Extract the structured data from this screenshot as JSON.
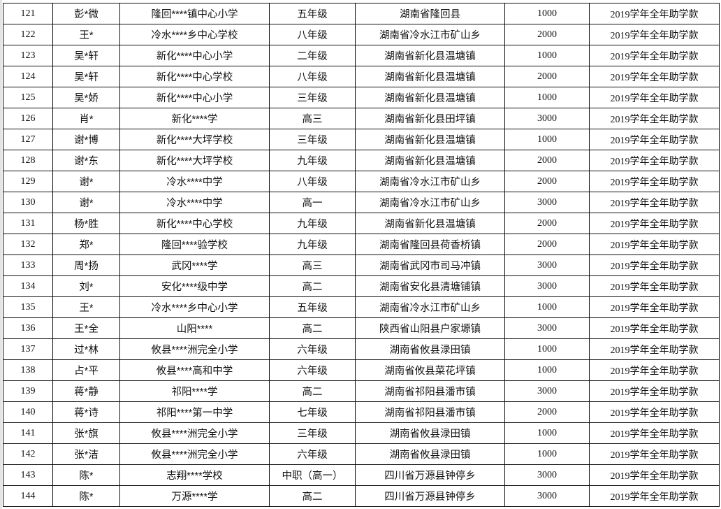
{
  "rows": [
    {
      "no": "121",
      "name": "彭*微",
      "school": "隆回****镇中心小学",
      "grade": "五年级",
      "address": "湖南省隆回县",
      "amount": "1000",
      "type": "2019学年全年助学款"
    },
    {
      "no": "122",
      "name": "王*",
      "school": "冷水****乡中心学校",
      "grade": "八年级",
      "address": "湖南省冷水江市矿山乡",
      "amount": "2000",
      "type": "2019学年全年助学款"
    },
    {
      "no": "123",
      "name": "吴*轩",
      "school": "新化****中心小学",
      "grade": "二年级",
      "address": "湖南省新化县温塘镇",
      "amount": "1000",
      "type": "2019学年全年助学款"
    },
    {
      "no": "124",
      "name": "吴*轩",
      "school": "新化****中心学校",
      "grade": "八年级",
      "address": "湖南省新化县温塘镇",
      "amount": "2000",
      "type": "2019学年全年助学款"
    },
    {
      "no": "125",
      "name": "吴*娇",
      "school": "新化****中心小学",
      "grade": "三年级",
      "address": "湖南省新化县温塘镇",
      "amount": "1000",
      "type": "2019学年全年助学款"
    },
    {
      "no": "126",
      "name": "肖*",
      "school": "新化****学",
      "grade": "高三",
      "address": "湖南省新化县田坪镇",
      "amount": "3000",
      "type": "2019学年全年助学款"
    },
    {
      "no": "127",
      "name": "谢*博",
      "school": "新化****大坪学校",
      "grade": "三年级",
      "address": "湖南省新化县温塘镇",
      "amount": "1000",
      "type": "2019学年全年助学款"
    },
    {
      "no": "128",
      "name": "谢*东",
      "school": "新化****大坪学校",
      "grade": "九年级",
      "address": "湖南省新化县温塘镇",
      "amount": "2000",
      "type": "2019学年全年助学款"
    },
    {
      "no": "129",
      "name": "谢*",
      "school": "冷水****中学",
      "grade": "八年级",
      "address": "湖南省冷水江市矿山乡",
      "amount": "2000",
      "type": "2019学年全年助学款"
    },
    {
      "no": "130",
      "name": "谢*",
      "school": "冷水****中学",
      "grade": "高一",
      "address": "湖南省冷水江市矿山乡",
      "amount": "3000",
      "type": "2019学年全年助学款"
    },
    {
      "no": "131",
      "name": "杨*胜",
      "school": "新化****中心学校",
      "grade": "九年级",
      "address": "湖南省新化县温塘镇",
      "amount": "2000",
      "type": "2019学年全年助学款"
    },
    {
      "no": "132",
      "name": "郑*",
      "school": "隆回****验学校",
      "grade": "九年级",
      "address": "湖南省隆回县荷香桥镇",
      "amount": "2000",
      "type": "2019学年全年助学款"
    },
    {
      "no": "133",
      "name": "周*扬",
      "school": "武冈****学",
      "grade": "高三",
      "address": "湖南省武冈市司马冲镇",
      "amount": "3000",
      "type": "2019学年全年助学款"
    },
    {
      "no": "134",
      "name": "刘*",
      "school": "安化****级中学",
      "grade": "高二",
      "address": "湖南省安化县清塘铺镇",
      "amount": "3000",
      "type": "2019学年全年助学款"
    },
    {
      "no": "135",
      "name": "王*",
      "school": "冷水****乡中心小学",
      "grade": "五年级",
      "address": "湖南省冷水江市矿山乡",
      "amount": "1000",
      "type": "2019学年全年助学款"
    },
    {
      "no": "136",
      "name": "王*全",
      "school": "山阳****",
      "grade": "高二",
      "address": "陕西省山阳县户家塬镇",
      "amount": "3000",
      "type": "2019学年全年助学款"
    },
    {
      "no": "137",
      "name": "过*林",
      "school": "攸县****洲完全小学",
      "grade": "六年级",
      "address": "湖南省攸县渌田镇",
      "amount": "1000",
      "type": "2019学年全年助学款"
    },
    {
      "no": "138",
      "name": "占*平",
      "school": "攸县****高和中学",
      "grade": "六年级",
      "address": "湖南省攸县菜花坪镇",
      "amount": "1000",
      "type": "2019学年全年助学款"
    },
    {
      "no": "139",
      "name": "蒋*静",
      "school": "祁阳****学",
      "grade": "高二",
      "address": "湖南省祁阳县潘市镇",
      "amount": "3000",
      "type": "2019学年全年助学款"
    },
    {
      "no": "140",
      "name": "蒋*诗",
      "school": "祁阳****第一中学",
      "grade": "七年级",
      "address": "湖南省祁阳县潘市镇",
      "amount": "2000",
      "type": "2019学年全年助学款"
    },
    {
      "no": "141",
      "name": "张*旗",
      "school": "攸县****洲完全小学",
      "grade": "三年级",
      "address": "湖南省攸县渌田镇",
      "amount": "1000",
      "type": "2019学年全年助学款"
    },
    {
      "no": "142",
      "name": "张*洁",
      "school": "攸县****洲完全小学",
      "grade": "六年级",
      "address": "湖南省攸县渌田镇",
      "amount": "1000",
      "type": "2019学年全年助学款"
    },
    {
      "no": "143",
      "name": "陈*",
      "school": "志翔****学校",
      "grade": "中职（高一）",
      "address": "四川省万源县钟停乡",
      "amount": "3000",
      "type": "2019学年全年助学款"
    },
    {
      "no": "144",
      "name": "陈*",
      "school": "万源****学",
      "grade": "高二",
      "address": "四川省万源县钟停乡",
      "amount": "3000",
      "type": "2019学年全年助学款"
    }
  ]
}
